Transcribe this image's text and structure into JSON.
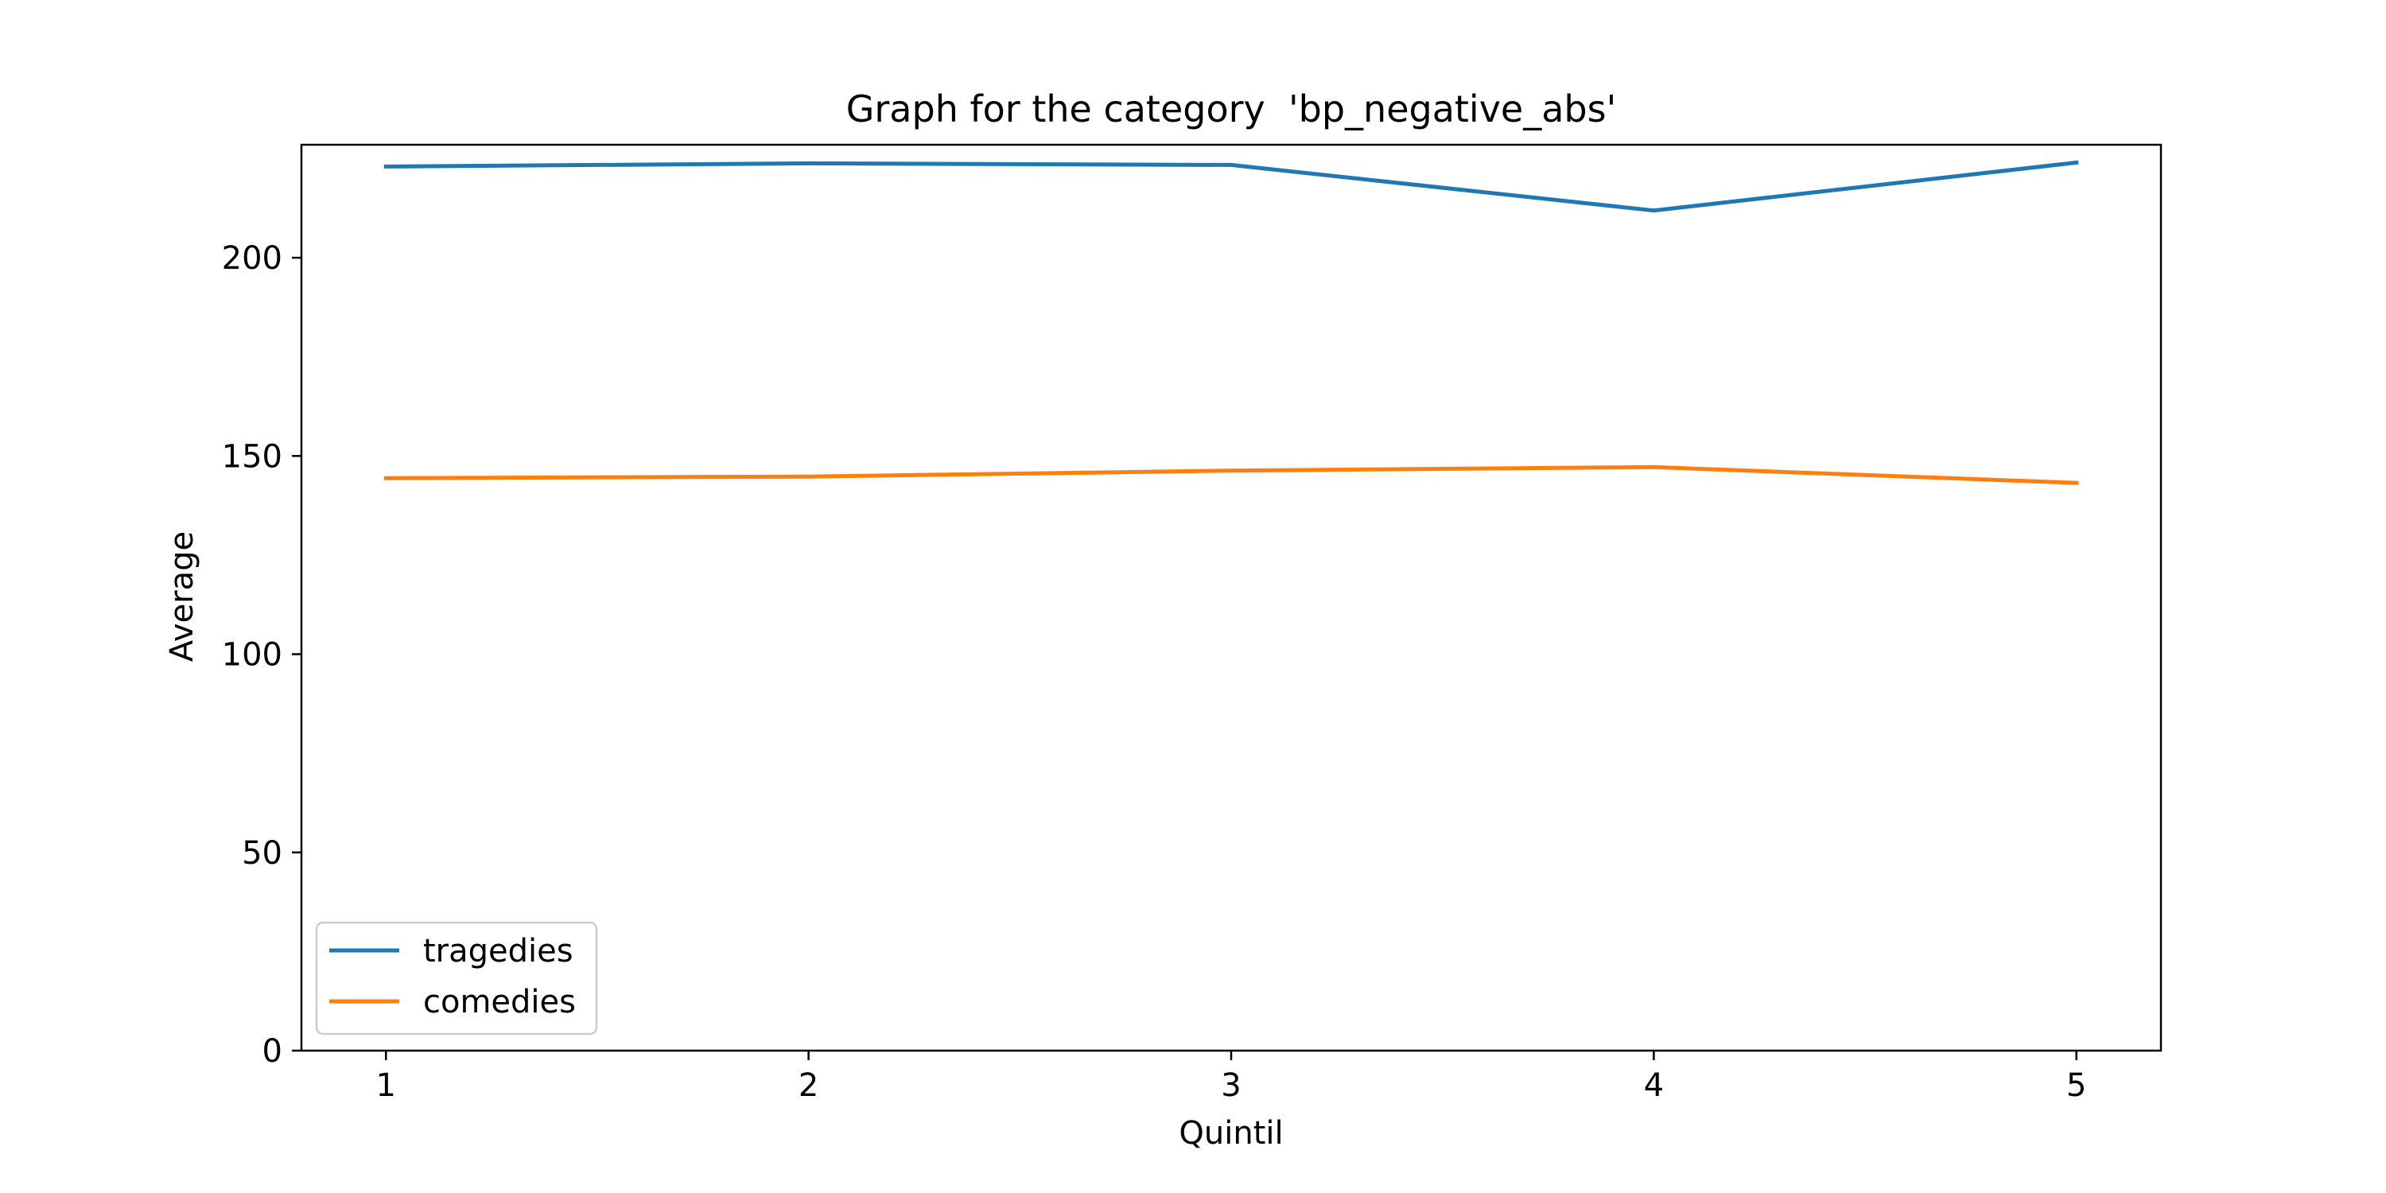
{
  "chart_data": {
    "type": "line",
    "title": "Graph for the category  'bp_negative_abs'",
    "xlabel": "Quintil",
    "ylabel": "Average",
    "x": [
      1,
      2,
      3,
      4,
      5
    ],
    "xlim": [
      0.8,
      5.2
    ],
    "ylim": [
      0,
      228.5
    ],
    "xticks": [
      1,
      2,
      3,
      4,
      5
    ],
    "yticks": [
      0,
      50,
      100,
      150,
      200
    ],
    "grid": false,
    "legend_position": "lower-left",
    "series": [
      {
        "name": "tragedies",
        "color": "#1f77b4",
        "values": [
          223.0,
          223.8,
          223.4,
          211.9,
          224.0
        ]
      },
      {
        "name": "comedies",
        "color": "#ff7f0e",
        "values": [
          144.4,
          144.8,
          146.3,
          147.2,
          143.2
        ]
      }
    ]
  }
}
